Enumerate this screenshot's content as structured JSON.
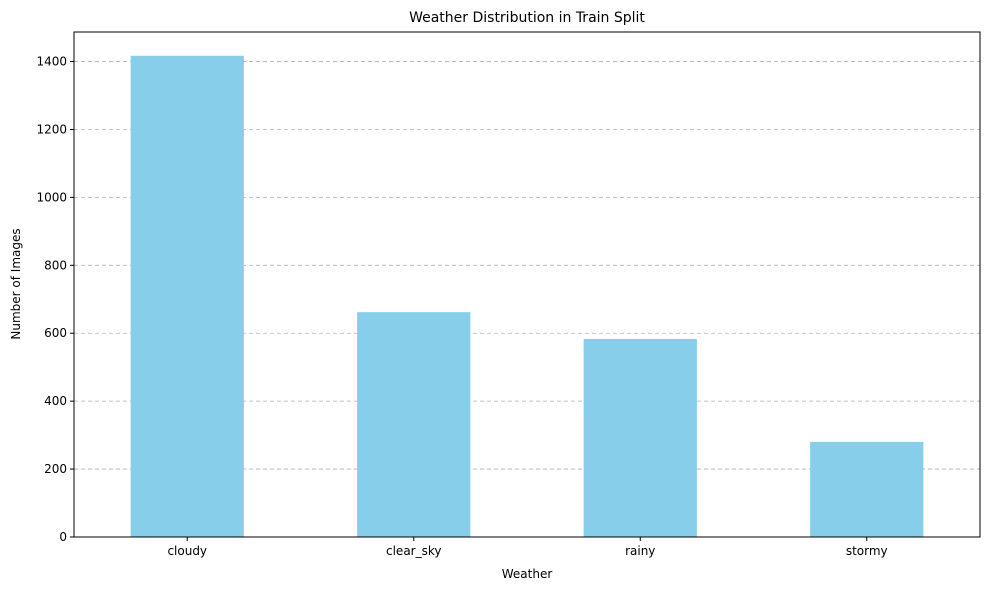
{
  "chart_data": {
    "type": "bar",
    "title": "Weather Distribution in Train Split",
    "xlabel": "Weather",
    "ylabel": "Number of Images",
    "categories": [
      "cloudy",
      "clear_sky",
      "rainy",
      "stormy"
    ],
    "values": [
      1417,
      662,
      583,
      280
    ],
    "ylim": [
      0,
      1487
    ],
    "yticks": [
      0,
      200,
      400,
      600,
      800,
      1000,
      1200,
      1400
    ],
    "ytick_labels": [
      "0",
      "200",
      "400",
      "600",
      "800",
      "1000",
      "1200",
      "1400"
    ],
    "grid": "y-dashed",
    "bar_color": "#87ceeb",
    "grid_color": "#b0b0b0"
  }
}
